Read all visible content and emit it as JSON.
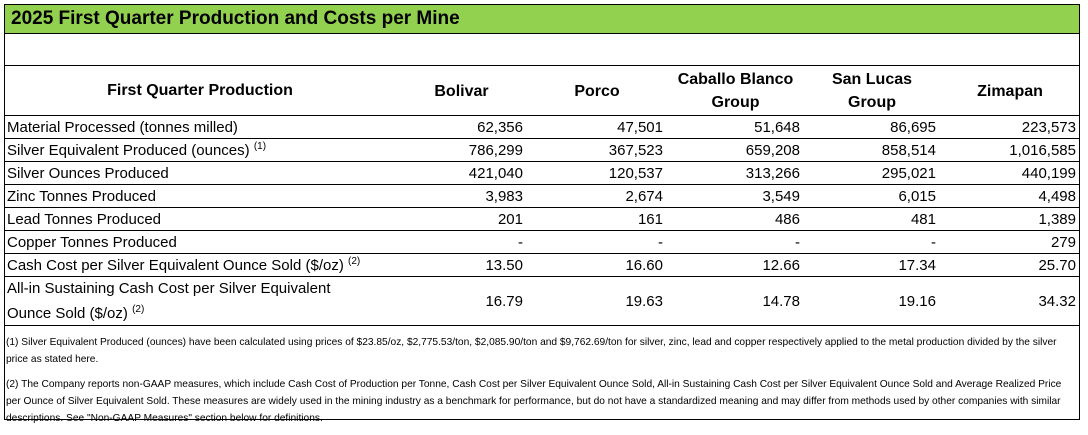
{
  "title": "2025 First Quarter Production and Costs per Mine",
  "table": {
    "header_label": "First Quarter Production",
    "columns": [
      {
        "lines": [
          "Bolivar"
        ]
      },
      {
        "lines": [
          "Porco"
        ]
      },
      {
        "lines": [
          "Caballo Blanco",
          "Group"
        ]
      },
      {
        "lines": [
          "San Lucas",
          "Group"
        ]
      },
      {
        "lines": [
          "Zimapan"
        ]
      }
    ],
    "rows": [
      {
        "label": "Material Processed (tonnes milled)",
        "note": "",
        "values": [
          "62,356",
          "47,501",
          "51,648",
          "86,695",
          "223,573"
        ]
      },
      {
        "label": "Silver Equivalent Produced (ounces)",
        "note": "(1)",
        "values": [
          "786,299",
          "367,523",
          "659,208",
          "858,514",
          "1,016,585"
        ]
      },
      {
        "label": "Silver Ounces Produced",
        "note": "",
        "values": [
          "421,040",
          "120,537",
          "313,266",
          "295,021",
          "440,199"
        ]
      },
      {
        "label": "Zinc Tonnes Produced",
        "note": "",
        "values": [
          "3,983",
          "2,674",
          "3,549",
          "6,015",
          "4,498"
        ]
      },
      {
        "label": "Lead Tonnes Produced",
        "note": "",
        "values": [
          "201",
          "161",
          "486",
          "481",
          "1,389"
        ]
      },
      {
        "label": "Copper Tonnes Produced",
        "note": "",
        "values": [
          "-",
          "-",
          "-",
          "-",
          "279"
        ]
      },
      {
        "label": "Cash Cost per Silver Equivalent Ounce Sold ($/oz)",
        "note": "(2)",
        "values": [
          "13.50",
          "16.60",
          "12.66",
          "17.34",
          "25.70"
        ]
      },
      {
        "label_lines": [
          "All-in Sustaining Cash Cost per Silver Equivalent",
          "Ounce Sold ($/oz)"
        ],
        "note": "(2)",
        "values": [
          "16.79",
          "19.63",
          "14.78",
          "19.16",
          "34.32"
        ]
      }
    ]
  },
  "footnotes": [
    "(1) Silver Equivalent Produced (ounces) have been calculated using prices of $23.85/oz, $2,775.53/ton, $2,085.90/ton and $9,762.69/ton for silver, zinc, lead and copper respectively applied to the metal production divided by the silver price as stated here.",
    "(2) The Company reports non-GAAP measures, which include Cash Cost of Production per Tonne, Cash Cost per Silver Equivalent Ounce Sold, All-in Sustaining Cash Cost per Silver Equivalent Ounce Sold and Average Realized Price per Ounce of Silver Equivalent Sold. These measures are widely used in the mining industry as a benchmark for performance, but do not have a standardized meaning and may differ from methods used by other companies with similar descriptions. See \"Non-GAAP Measures\" section below for definitions."
  ]
}
